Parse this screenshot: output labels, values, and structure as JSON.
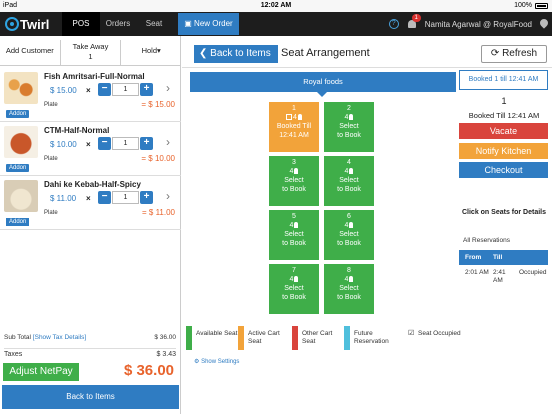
{
  "statusbar": {
    "device": "iPad",
    "time": "12:02 AM",
    "battery": "100%"
  },
  "navbar": {
    "logo": "Twirl",
    "tabs": [
      {
        "label": "POS"
      },
      {
        "label": "Orders"
      },
      {
        "label": "Seat"
      }
    ],
    "new_order": "New Order",
    "notification_count": "1",
    "user": "Namita Agarwal @ RoyalFood"
  },
  "order_tabs": [
    {
      "label": "Add Customer"
    },
    {
      "label": "Take Away",
      "sub": "1"
    },
    {
      "label": "Hold"
    }
  ],
  "items": [
    {
      "name": "Fish Amritsari-Full-Normal",
      "price": "$ 15.00",
      "qty": "1",
      "unit": "Plate",
      "total": "= $ 15.00",
      "addon": ""
    },
    {
      "name": "CTM-Half-Normal",
      "price": "$ 10.00",
      "qty": "1",
      "unit": "Plate",
      "total": "= $ 10.00",
      "addon": "Addon"
    },
    {
      "name": "Dahi ke Kebab-Half-Spicy",
      "price": "$ 11.00",
      "qty": "1",
      "unit": "Plate",
      "total": "= $ 11.00",
      "addon": "Addon"
    }
  ],
  "last_addon": "Addon",
  "summary": {
    "subtotal_label": "Sub Total",
    "tax_details_link": "[Show Tax Details]",
    "subtotal": "$ 36.00",
    "taxes_label": "Taxes",
    "taxes": "$ 3.43",
    "adjust_netpay": "Adjust NetPay",
    "grand_total": "$ 36.00",
    "back_to_items": "Back to Items"
  },
  "main": {
    "back_button": "Back to Items",
    "title": "Seat Arrangement",
    "refresh": "Refresh",
    "section": "Royal foods"
  },
  "seats": [
    {
      "number": "1",
      "capacity": "4",
      "status": "active",
      "line1": "Booked Till",
      "line2": "12:41 AM"
    },
    {
      "number": "2",
      "capacity": "4",
      "status": "free",
      "line1": "Select",
      "line2": "to Book"
    },
    {
      "number": "3",
      "capacity": "4",
      "status": "free",
      "line1": "Select",
      "line2": "to Book"
    },
    {
      "number": "4",
      "capacity": "4",
      "status": "free",
      "line1": "Select",
      "line2": "to Book"
    },
    {
      "number": "5",
      "capacity": "4",
      "status": "free",
      "line1": "Select",
      "line2": "to Book"
    },
    {
      "number": "6",
      "capacity": "4",
      "status": "free",
      "line1": "Select",
      "line2": "to Book"
    },
    {
      "number": "7",
      "capacity": "4",
      "status": "free",
      "line1": "Select",
      "line2": "to Book"
    },
    {
      "number": "8",
      "capacity": "4",
      "status": "free",
      "line1": "Select",
      "line2": "to Book"
    }
  ],
  "legend": [
    {
      "label": "Available Seat",
      "color": "#3fae49"
    },
    {
      "label": "Active Cart Seat",
      "color": "#f2a33a"
    },
    {
      "label": "Other Cart Seat",
      "color": "#d9443c"
    },
    {
      "label": "Future Reservation",
      "color": "#4fbfdc"
    },
    {
      "label": "Seat Occupied",
      "color": ""
    }
  ],
  "show_settings": "Show Settings",
  "side": {
    "booked_link": "Booked 1 till 12:41 AM",
    "seat_number": "1",
    "booked_till": "Booked Till 12:41 AM",
    "vacate": "Vacate",
    "notify_kitchen": "Notify Kitchen",
    "checkout": "Checkout",
    "click_seats": "Click on Seats for Details",
    "all_reservations": "All Reservations",
    "res_headers": {
      "from": "From",
      "till": "Till"
    },
    "res_rows": [
      {
        "from": "2:01 AM",
        "till": "2:41 AM",
        "status": "Occupied"
      }
    ]
  },
  "colors": {
    "accent": "#2f7cc2",
    "green": "#3fae49",
    "orange": "#f2a33a",
    "red": "#d9443c",
    "total": "#e8632c"
  }
}
